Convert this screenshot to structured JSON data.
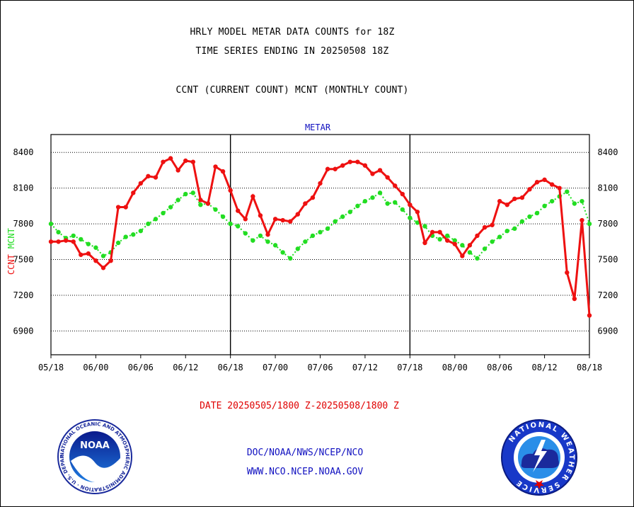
{
  "header": {
    "title_line1": "HRLY MODEL METAR DATA COUNTS for 18Z",
    "title_line2": "TIME SERIES ENDING IN 20250508 18Z",
    "title_line3": "CCNT (CURRENT COUNT) MCNT (MONTHLY COUNT)"
  },
  "footer": {
    "date_range": "DATE 20250505/1800 Z-20250508/1800 Z",
    "org": "DOC/NOAA/NWS/NCEP/NCO",
    "url": "WWW.NCO.NCEP.NOAA.GOV"
  },
  "logos": {
    "left": {
      "text": "NOAA",
      "ring_text": "NATIONAL OCEANIC AND ATMOSPHERIC ADMINISTRATION · U.S. DEPARTMENT OF COMMERCE ·"
    },
    "right": {
      "ring_text": "NATIONAL WEATHER SERVICE"
    }
  },
  "colors": {
    "ccnt": "#ee1111",
    "mcnt": "#22dd22",
    "title_blue": "#1010c0",
    "ylabel_ccnt": "#ee1111",
    "ylabel_mcnt": "#22dd22"
  },
  "chart_data": {
    "type": "line",
    "title": "METAR",
    "ylabel_parts": [
      "CCNT",
      "MCNT"
    ],
    "ylim": [
      6700,
      8550
    ],
    "yticks": [
      6900,
      7200,
      7500,
      7800,
      8100,
      8400
    ],
    "xticks": [
      "05/18",
      "06/00",
      "06/06",
      "06/12",
      "06/18",
      "07/00",
      "07/06",
      "07/12",
      "07/18",
      "08/00",
      "08/06",
      "08/12",
      "08/18"
    ],
    "day_separators_hours": [
      24,
      48
    ],
    "x_hours_start": 0,
    "x_hours_end": 72,
    "grid": true,
    "series": [
      {
        "name": "CCNT",
        "values": [
          7650,
          7650,
          7660,
          7650,
          7540,
          7550,
          7490,
          7430,
          7490,
          7940,
          7940,
          8060,
          8140,
          8200,
          8190,
          8320,
          8350,
          8250,
          8330,
          8320,
          8000,
          7970,
          8280,
          8240,
          8080,
          7910,
          7840,
          8030,
          7870,
          7710,
          7840,
          7830,
          7820,
          7880,
          7970,
          8020,
          8140,
          8260,
          8260,
          8290,
          8320,
          8320,
          8290,
          8220,
          8250,
          8190,
          8120,
          8050,
          7960,
          7900,
          7640,
          7730,
          7730,
          7660,
          7630,
          7530,
          7620,
          7700,
          7770,
          7790,
          7990,
          7960,
          8010,
          8020,
          8090,
          8150,
          8170,
          8130,
          8100,
          7390,
          7170,
          7830,
          7030
        ]
      },
      {
        "name": "MCNT",
        "values": [
          7800,
          7730,
          7680,
          7700,
          7670,
          7630,
          7600,
          7530,
          7560,
          7640,
          7690,
          7710,
          7740,
          7800,
          7840,
          7890,
          7940,
          8000,
          8050,
          8060,
          7960,
          7970,
          7920,
          7860,
          7800,
          7780,
          7720,
          7660,
          7700,
          7650,
          7620,
          7560,
          7510,
          7590,
          7650,
          7700,
          7730,
          7760,
          7820,
          7860,
          7900,
          7950,
          7990,
          8020,
          8060,
          7970,
          7980,
          7920,
          7850,
          7810,
          7780,
          7700,
          7670,
          7700,
          7660,
          7620,
          7560,
          7510,
          7590,
          7650,
          7690,
          7740,
          7760,
          7820,
          7860,
          7890,
          7950,
          7990,
          8030,
          8070,
          7970,
          7990,
          7800
        ]
      }
    ]
  }
}
